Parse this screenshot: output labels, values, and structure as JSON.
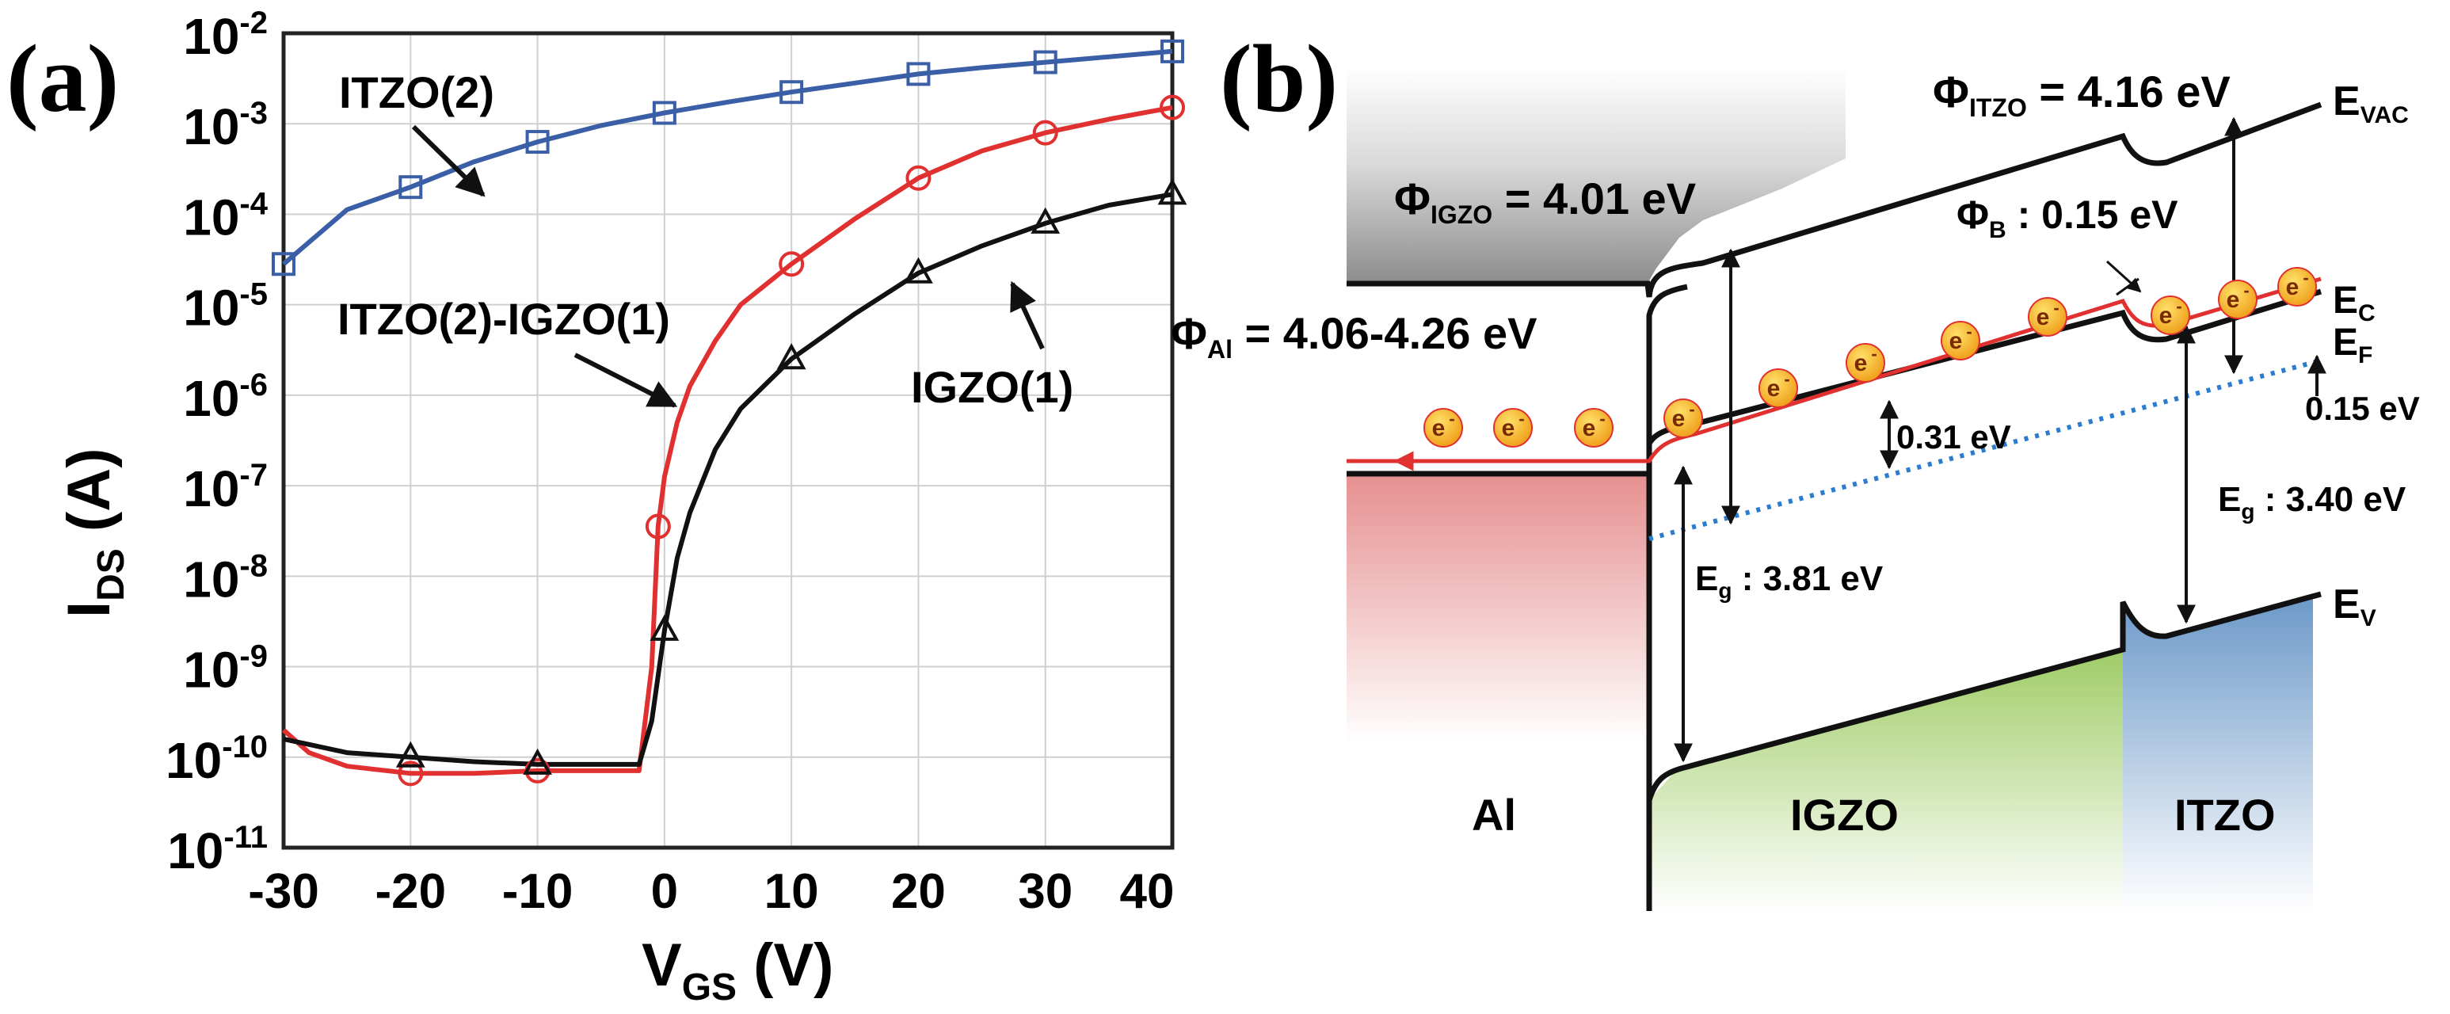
{
  "figure": {
    "panel_a": {
      "tag": "(a)"
    },
    "panel_b": {
      "tag": "(b)",
      "phi_igzo": {
        "sym": "Φ",
        "sub": "IGZO",
        "val": " = 4.01 eV"
      },
      "phi_itzo": {
        "sym": "Φ",
        "sub": "ITZO",
        "val": " = 4.16 eV"
      },
      "phi_al": {
        "sym": "Φ",
        "sub": "Al",
        "val": " = 4.06-4.26 eV"
      },
      "phi_b": {
        "sym": "Φ",
        "sub": "B",
        "val": " : 0.15 eV"
      },
      "e_vac": {
        "main": "E",
        "sub": "VAC"
      },
      "e_c": {
        "main": "E",
        "sub": "C"
      },
      "e_f": {
        "main": "E",
        "sub": "F"
      },
      "e_v": {
        "main": "E",
        "sub": "V"
      },
      "offset_031": "0.31 eV",
      "offset_015": "0.15 eV",
      "eg_igzo": {
        "main": "E",
        "sub": "g",
        "val": " : 3.81 eV"
      },
      "eg_itzo": {
        "main": "E",
        "sub": "g",
        "val": " : 3.40 eV"
      },
      "electron": "e",
      "electron_sup": "-",
      "region_al": "Al",
      "region_igzo": "IGZO",
      "region_itzo": "ITZO"
    }
  },
  "chart_data": {
    "type": "line",
    "title": "",
    "xlabel": {
      "main": "V",
      "sub": "GS",
      "unit": " (V)"
    },
    "ylabel": {
      "main": "I",
      "sub": "DS",
      "unit": " (A)"
    },
    "xlim": [
      -30,
      40
    ],
    "ylim_log10": [
      -11,
      -2
    ],
    "yscale": "log",
    "x_ticks": [
      -30,
      -20,
      -10,
      0,
      10,
      20,
      30,
      40
    ],
    "x_tick_labels": [
      "-30",
      "-20",
      "-10",
      "0",
      "10",
      "20",
      "30",
      "40"
    ],
    "y_ticks_exponents": [
      "-2",
      "-3",
      "-4",
      "-5",
      "-6",
      "-7",
      "-8",
      "-9",
      "-10",
      "-11"
    ],
    "y_tick_base": "10",
    "grid": true,
    "series": [
      {
        "name": "ITZO(2)",
        "color": "#3a5fa6",
        "marker": "square",
        "x": [
          -30,
          -25,
          -20,
          -15,
          -10,
          -5,
          0,
          5,
          10,
          15,
          20,
          25,
          30,
          35,
          40
        ],
        "log10_y": [
          -4.55,
          -3.95,
          -3.7,
          -3.42,
          -3.2,
          -3.02,
          -2.88,
          -2.76,
          -2.65,
          -2.55,
          -2.45,
          -2.38,
          -2.32,
          -2.26,
          -2.2
        ],
        "marker_x": [
          -30,
          -20,
          -10,
          0,
          10,
          20,
          30,
          40
        ],
        "marker_log10_y": [
          -4.55,
          -3.7,
          -3.2,
          -2.88,
          -2.65,
          -2.45,
          -2.32,
          -2.2
        ]
      },
      {
        "name": "ITZO(2)-IGZO(1)",
        "color": "#e03030",
        "marker": "circle",
        "x": [
          -30,
          -28,
          -25,
          -20,
          -15,
          -10,
          -5,
          -2,
          -1,
          -0.5,
          0,
          1,
          2,
          4,
          6,
          10,
          15,
          20,
          25,
          30,
          35,
          40
        ],
        "log10_y": [
          -9.7,
          -9.95,
          -10.1,
          -10.18,
          -10.18,
          -10.15,
          -10.15,
          -10.15,
          -9.0,
          -7.45,
          -6.9,
          -6.3,
          -5.9,
          -5.4,
          -5.0,
          -4.55,
          -4.05,
          -3.6,
          -3.3,
          -3.1,
          -2.95,
          -2.82
        ],
        "marker_x": [
          -20,
          -10,
          -0.5,
          10,
          20,
          30,
          40
        ],
        "marker_log10_y": [
          -10.18,
          -10.15,
          -7.45,
          -4.55,
          -3.6,
          -3.1,
          -2.82
        ]
      },
      {
        "name": "IGZO(1)",
        "color": "#111111",
        "marker": "triangle",
        "x": [
          -30,
          -25,
          -20,
          -15,
          -10,
          -5,
          -2,
          -1,
          0,
          1,
          2,
          4,
          6,
          10,
          15,
          20,
          25,
          30,
          35,
          40
        ],
        "log10_y": [
          -9.8,
          -9.95,
          -10.0,
          -10.05,
          -10.08,
          -10.08,
          -10.08,
          -9.6,
          -8.6,
          -7.8,
          -7.3,
          -6.6,
          -6.15,
          -5.6,
          -5.1,
          -4.65,
          -4.35,
          -4.1,
          -3.9,
          -3.78
        ],
        "marker_x": [
          -20,
          -10,
          0,
          10,
          20,
          30,
          40
        ],
        "marker_log10_y": [
          -10.0,
          -10.08,
          -8.6,
          -5.6,
          -4.65,
          -4.1,
          -3.78
        ]
      }
    ],
    "annotations": [
      {
        "text": "ITZO(2)",
        "points_to": "ITZO(2) curve"
      },
      {
        "text": "ITZO(2)-IGZO(1)",
        "points_to": "ITZO(2)-IGZO(1) curve"
      },
      {
        "text": "IGZO(1)",
        "points_to": "IGZO(1) curve"
      }
    ]
  }
}
